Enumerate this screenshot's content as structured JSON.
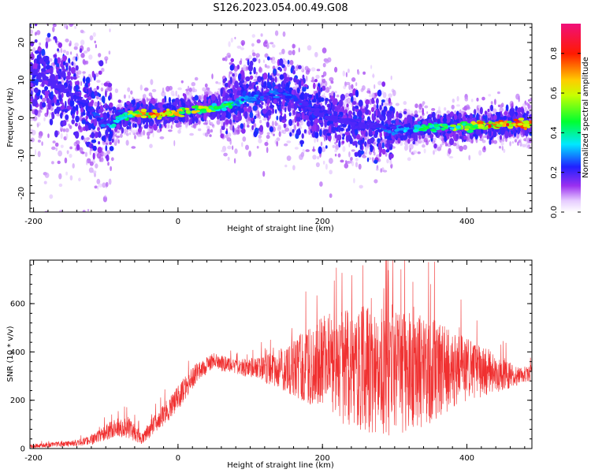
{
  "title": "S126.2023.054.00.49.G08",
  "colors": {
    "snr_line": "#f03030",
    "background": "#ffffff",
    "axis": "#000000"
  },
  "chart_data": [
    {
      "type": "heatmap",
      "name": "spectrogram",
      "xlabel": "Height of straight line (km)",
      "ylabel": "Frequency (Hz)",
      "xlim": [
        -205,
        490
      ],
      "ylim": [
        -25,
        25
      ],
      "xticks": [
        -200,
        0,
        200,
        400
      ],
      "xtick_labels": [
        "-200",
        "0",
        "200",
        "400"
      ],
      "yticks": [
        -20,
        -10,
        0,
        10,
        20
      ],
      "ytick_labels": [
        "-20",
        "-10",
        "0",
        "10",
        "20"
      ],
      "colorbar": {
        "label": "Normalized spectral amplitude",
        "range": [
          0,
          0.95
        ],
        "ticks": [
          0,
          0.2,
          0.4,
          0.6,
          0.8
        ],
        "tick_labels": [
          "0.0",
          "0.2",
          "0.4",
          "0.6",
          "0.8"
        ],
        "colormap": "rainbow (white-violet-blue-cyan-green-yellow-red-magenta)"
      },
      "ridge": {
        "x": [
          -200,
          -160,
          -130,
          -110,
          -95,
          -80,
          -60,
          -40,
          -20,
          0,
          20,
          40,
          60,
          80,
          100,
          120,
          140,
          160,
          180,
          200,
          230,
          260,
          290,
          320,
          350,
          380,
          410,
          440,
          470,
          490
        ],
        "freq": [
          12,
          8,
          4,
          0,
          -2,
          0,
          1,
          1,
          1,
          1.5,
          2,
          2.5,
          3,
          4,
          5,
          6,
          7,
          5,
          3,
          1,
          -1,
          -2,
          -3,
          -3,
          -2.5,
          -2.5,
          -2,
          -2,
          -1.5,
          -1.5
        ],
        "amplitude": [
          0.15,
          0.2,
          0.25,
          0.3,
          0.35,
          0.45,
          0.7,
          0.85,
          0.9,
          0.75,
          0.7,
          0.65,
          0.55,
          0.45,
          0.35,
          0.3,
          0.3,
          0.28,
          0.25,
          0.22,
          0.2,
          0.22,
          0.3,
          0.4,
          0.5,
          0.6,
          0.75,
          0.85,
          0.9,
          0.85
        ]
      }
    },
    {
      "type": "line",
      "name": "snr",
      "xlabel": "Height of straight line (km)",
      "ylabel": "SNR (10 * v/v)",
      "xlim": [
        -205,
        490
      ],
      "ylim": [
        0,
        780
      ],
      "xticks": [
        -200,
        0,
        200,
        400
      ],
      "xtick_labels": [
        "-200",
        "0",
        "200",
        "400"
      ],
      "yticks": [
        0,
        200,
        400,
        600
      ],
      "ytick_labels": [
        "0",
        "200",
        "400",
        "600"
      ],
      "envelope": {
        "x": [
          -205,
          -150,
          -120,
          -90,
          -70,
          -50,
          -30,
          -10,
          10,
          30,
          50,
          80,
          110,
          140,
          170,
          200,
          230,
          260,
          290,
          320,
          350,
          380,
          410,
          440,
          470,
          490
        ],
        "mean": [
          10,
          20,
          35,
          80,
          90,
          40,
          110,
          170,
          250,
          330,
          360,
          340,
          330,
          330,
          340,
          350,
          340,
          330,
          320,
          320,
          320,
          330,
          320,
          310,
          300,
          310
        ],
        "spread": [
          8,
          12,
          20,
          40,
          45,
          25,
          40,
          50,
          50,
          40,
          35,
          30,
          45,
          80,
          140,
          200,
          240,
          260,
          270,
          250,
          220,
          160,
          120,
          80,
          40,
          30
        ]
      }
    }
  ]
}
